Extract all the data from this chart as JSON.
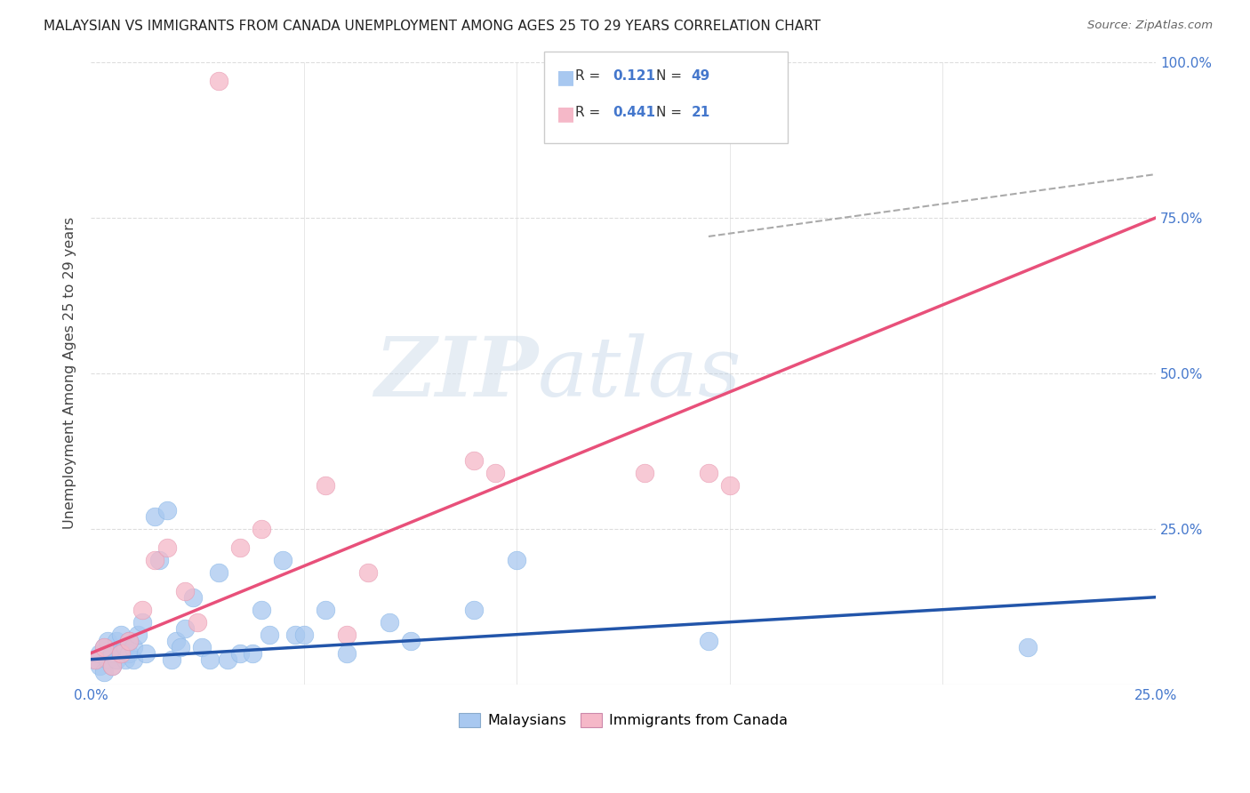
{
  "title": "MALAYSIAN VS IMMIGRANTS FROM CANADA UNEMPLOYMENT AMONG AGES 25 TO 29 YEARS CORRELATION CHART",
  "source": "Source: ZipAtlas.com",
  "ylabel": "Unemployment Among Ages 25 to 29 years",
  "xlim": [
    0,
    0.25
  ],
  "ylim": [
    0,
    1.0
  ],
  "xticks": [
    0.0,
    0.05,
    0.1,
    0.15,
    0.2,
    0.25
  ],
  "yticks": [
    0.0,
    0.25,
    0.5,
    0.75,
    1.0
  ],
  "ytick_right_labels": [
    "",
    "25.0%",
    "50.0%",
    "75.0%",
    "100.0%"
  ],
  "xtick_labels": [
    "0.0%",
    "",
    "",
    "",
    "",
    "25.0%"
  ],
  "malaysian_R": 0.121,
  "malaysian_N": 49,
  "canada_R": 0.441,
  "canada_N": 21,
  "blue_color": "#a8c8f0",
  "pink_color": "#f5b8c8",
  "blue_line_color": "#2255aa",
  "pink_line_color": "#e8507a",
  "axis_label_color": "#4477cc",
  "watermark_color": "#d0dff0",
  "background_color": "#ffffff",
  "grid_color": "#dddddd",
  "malaysian_x": [
    0.001,
    0.002,
    0.002,
    0.003,
    0.003,
    0.004,
    0.004,
    0.005,
    0.005,
    0.006,
    0.006,
    0.007,
    0.007,
    0.008,
    0.008,
    0.009,
    0.009,
    0.01,
    0.01,
    0.011,
    0.012,
    0.013,
    0.015,
    0.016,
    0.018,
    0.019,
    0.02,
    0.021,
    0.022,
    0.024,
    0.026,
    0.028,
    0.03,
    0.032,
    0.035,
    0.038,
    0.04,
    0.042,
    0.045,
    0.048,
    0.05,
    0.055,
    0.06,
    0.07,
    0.075,
    0.09,
    0.1,
    0.145,
    0.22
  ],
  "malaysian_y": [
    0.04,
    0.03,
    0.05,
    0.02,
    0.06,
    0.04,
    0.07,
    0.03,
    0.05,
    0.04,
    0.07,
    0.05,
    0.08,
    0.04,
    0.06,
    0.05,
    0.07,
    0.04,
    0.06,
    0.08,
    0.1,
    0.05,
    0.27,
    0.2,
    0.28,
    0.04,
    0.07,
    0.06,
    0.09,
    0.14,
    0.06,
    0.04,
    0.18,
    0.04,
    0.05,
    0.05,
    0.12,
    0.08,
    0.2,
    0.08,
    0.08,
    0.12,
    0.05,
    0.1,
    0.07,
    0.12,
    0.2,
    0.07,
    0.06
  ],
  "canada_x": [
    0.001,
    0.003,
    0.005,
    0.007,
    0.009,
    0.012,
    0.015,
    0.018,
    0.022,
    0.025,
    0.03,
    0.035,
    0.04,
    0.055,
    0.06,
    0.065,
    0.09,
    0.095,
    0.13,
    0.145,
    0.15
  ],
  "canada_y": [
    0.04,
    0.06,
    0.03,
    0.05,
    0.07,
    0.12,
    0.2,
    0.22,
    0.15,
    0.1,
    0.97,
    0.22,
    0.25,
    0.32,
    0.08,
    0.18,
    0.36,
    0.34,
    0.34,
    0.34,
    0.32
  ],
  "blue_trend": [
    0.0,
    0.25,
    0.04,
    0.14
  ],
  "pink_trend": [
    0.0,
    0.25,
    0.05,
    0.75
  ],
  "dash_line": [
    0.145,
    0.25,
    0.72,
    0.82
  ]
}
